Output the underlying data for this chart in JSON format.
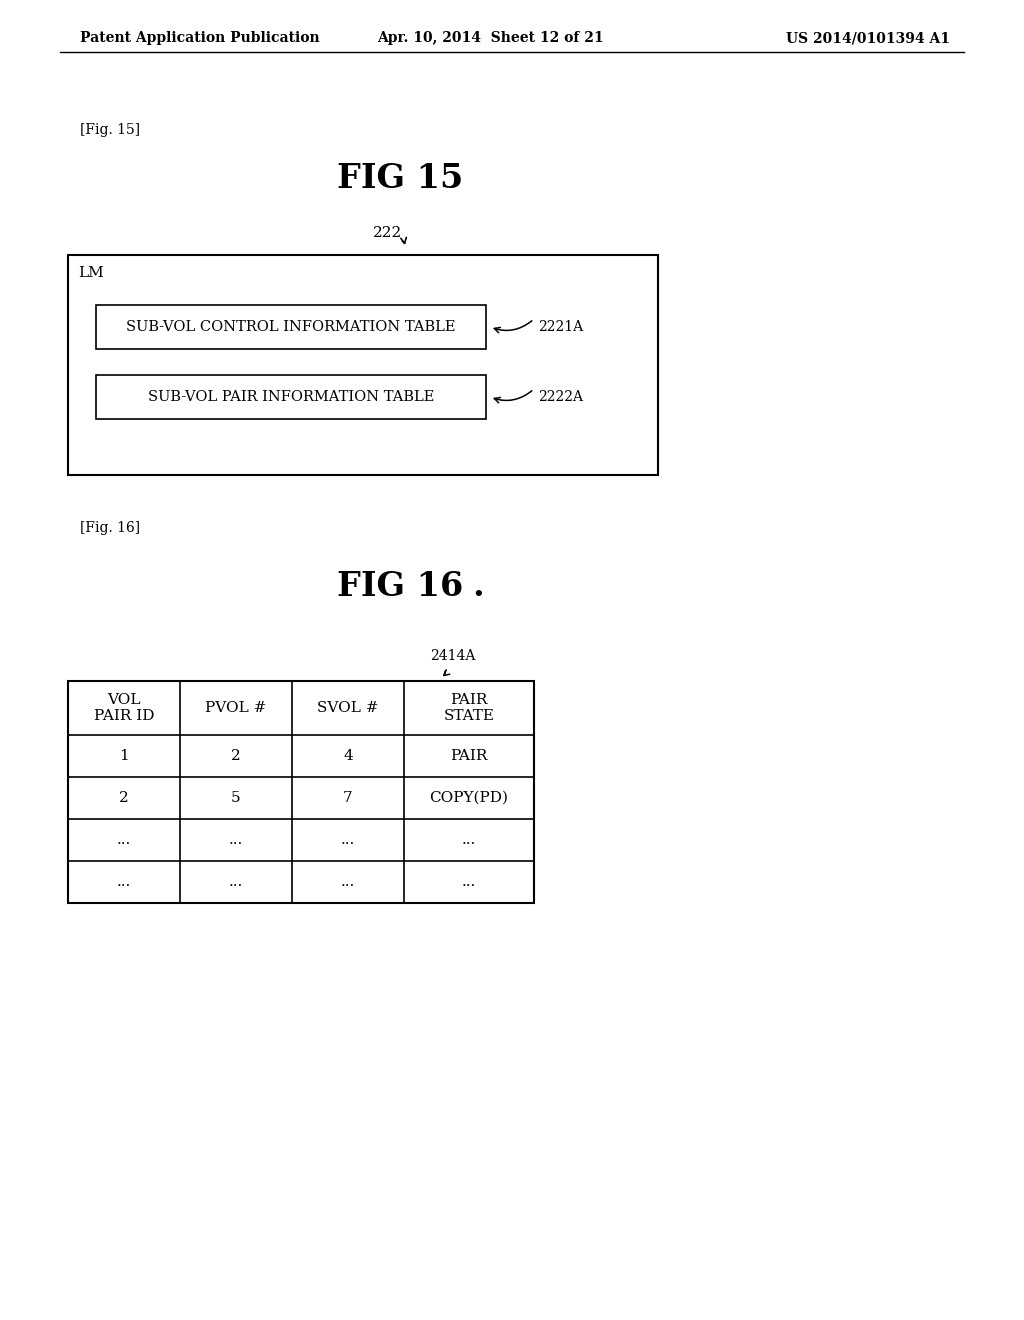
{
  "background_color": "#ffffff",
  "page_header_left": "Patent Application Publication",
  "page_header_center": "Apr. 10, 2014  Sheet 12 of 21",
  "page_header_right": "US 2014/0101394 A1",
  "fig15_label": "[Fig. 15]",
  "fig15_title": "FIG 15",
  "fig16_label": "[Fig. 16]",
  "fig16_title": "FIG 16",
  "fig15_outer_label": "LM",
  "fig15_outer_ref": "222",
  "fig15_box1_text": "SUB-VOL CONTROL INFORMATION TABLE",
  "fig15_box1_ref": "2221A",
  "fig15_box2_text": "SUB-VOL PAIR INFORMATION TABLE",
  "fig15_box2_ref": "2222A",
  "fig16_ref": "2414A",
  "table_headers": [
    "VOL\nPAIR ID",
    "PVOL #",
    "SVOL #",
    "PAIR\nSTATE"
  ],
  "table_rows": [
    [
      "1",
      "2",
      "4",
      "PAIR"
    ],
    [
      "2",
      "5",
      "7",
      "COPY(PD)"
    ],
    [
      "...",
      "...",
      "...",
      "..."
    ],
    [
      "...",
      "...",
      "...",
      "..."
    ]
  ]
}
